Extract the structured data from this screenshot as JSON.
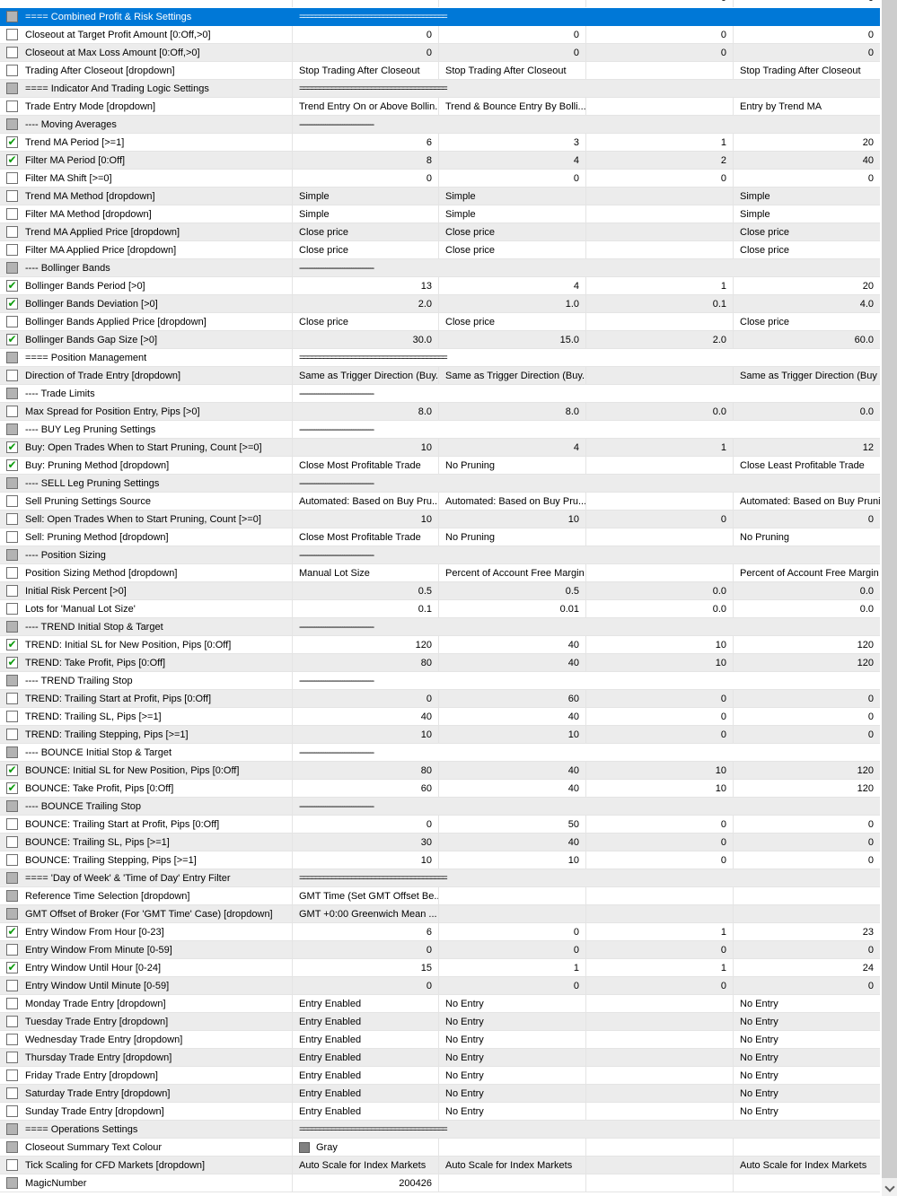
{
  "colors": {
    "accent": "#0078d7",
    "alt": "#ececec",
    "grid": "#e4e4e4",
    "cbborder": "#707070",
    "cbgray": "#b3b3b3",
    "green": "#0c9c0c",
    "swatch": "#808080",
    "sbtrack": "#f0f0f0",
    "sbthumb": "#cdcdcd",
    "chev": "#5f5f5f"
  },
  "icons": {
    "check": "✔"
  },
  "table": {
    "separators": {
      "eq": "=====================================",
      "dash": "----------------------------------------"
    },
    "partial_top": {
      "values": [
        "",
        "",
        "0",
        "0"
      ]
    },
    "rows": [
      {
        "t": "sec",
        "sep": "eq",
        "selected": true,
        "cb": "g",
        "label": "==== Combined Profit & Risk Settings"
      },
      {
        "t": "p",
        "cb": "u",
        "label": "Closeout at Target Profit Amount [0:Off,>0]",
        "cells": [
          "0",
          "0",
          "0",
          "0"
        ]
      },
      {
        "t": "p",
        "cb": "u",
        "label": "Closeout at Max Loss Amount [0:Off,>0]",
        "cells": [
          "0",
          "0",
          "0",
          "0"
        ]
      },
      {
        "t": "p",
        "cb": "u",
        "label": "Trading After Closeout [dropdown]",
        "cells": [
          "Stop Trading After Closeout",
          "Stop Trading After Closeout",
          "",
          "Stop Trading After Closeout"
        ]
      },
      {
        "t": "sec",
        "sep": "eq",
        "cb": "g",
        "label": "==== Indicator And Trading Logic Settings"
      },
      {
        "t": "p",
        "cb": "u",
        "label": "Trade Entry Mode [dropdown]",
        "cells": [
          "Trend Entry On or Above Bollin...",
          "Trend & Bounce Entry By Bolli...",
          "",
          "Entry by Trend MA"
        ]
      },
      {
        "t": "sec",
        "sep": "dash",
        "cb": "g",
        "label": "---- Moving Averages"
      },
      {
        "t": "p",
        "cb": "c",
        "label": "Trend MA Period [>=1]",
        "cells": [
          "6",
          "3",
          "1",
          "20"
        ]
      },
      {
        "t": "p",
        "cb": "c",
        "label": "Filter MA Period [0:Off]",
        "cells": [
          "8",
          "4",
          "2",
          "40"
        ]
      },
      {
        "t": "p",
        "cb": "u",
        "label": "Filter MA Shift [>=0]",
        "cells": [
          "0",
          "0",
          "0",
          "0"
        ]
      },
      {
        "t": "p",
        "cb": "u",
        "label": "Trend MA Method [dropdown]",
        "cells": [
          "Simple",
          "Simple",
          "",
          "Simple"
        ]
      },
      {
        "t": "p",
        "cb": "u",
        "label": "Filter MA Method [dropdown]",
        "cells": [
          "Simple",
          "Simple",
          "",
          "Simple"
        ]
      },
      {
        "t": "p",
        "cb": "u",
        "label": "Trend MA Applied Price [dropdown]",
        "cells": [
          "Close price",
          "Close price",
          "",
          "Close price"
        ]
      },
      {
        "t": "p",
        "cb": "u",
        "label": "Filter MA Applied Price [dropdown]",
        "cells": [
          "Close price",
          "Close price",
          "",
          "Close price"
        ]
      },
      {
        "t": "sec",
        "sep": "dash",
        "cb": "g",
        "label": "---- Bollinger Bands"
      },
      {
        "t": "p",
        "cb": "c",
        "label": "Bollinger Bands Period [>0]",
        "cells": [
          "13",
          "4",
          "1",
          "20"
        ]
      },
      {
        "t": "p",
        "cb": "c",
        "label": "Bollinger Bands Deviation [>0]",
        "cells": [
          "2.0",
          "1.0",
          "0.1",
          "4.0"
        ]
      },
      {
        "t": "p",
        "cb": "u",
        "label": "Bollinger Bands Applied Price [dropdown]",
        "cells": [
          "Close price",
          "Close price",
          "",
          "Close price"
        ]
      },
      {
        "t": "p",
        "cb": "c",
        "label": "Bollinger Bands Gap Size [>0]",
        "cells": [
          "30.0",
          "15.0",
          "2.0",
          "60.0"
        ]
      },
      {
        "t": "sec",
        "sep": "eq",
        "cb": "g",
        "label": "==== Position Management"
      },
      {
        "t": "p",
        "cb": "u",
        "label": "Direction of Trade Entry [dropdown]",
        "cells": [
          "Same as Trigger Direction (Buy...",
          "Same as Trigger Direction (Buy...",
          "",
          "Same as Trigger Direction (Buy ..."
        ]
      },
      {
        "t": "sec",
        "sep": "dash",
        "cb": "g",
        "label": "---- Trade Limits"
      },
      {
        "t": "p",
        "cb": "u",
        "label": "Max Spread for Position Entry, Pips [>0]",
        "cells": [
          "8.0",
          "8.0",
          "0.0",
          "0.0"
        ]
      },
      {
        "t": "sec",
        "sep": "dash",
        "cb": "g",
        "label": "---- BUY Leg Pruning Settings"
      },
      {
        "t": "p",
        "cb": "c",
        "label": "Buy: Open Trades When to Start Pruning, Count [>=0]",
        "cells": [
          "10",
          "4",
          "1",
          "12"
        ]
      },
      {
        "t": "p",
        "cb": "c",
        "label": "Buy: Pruning Method [dropdown]",
        "cells": [
          "Close Most Profitable Trade",
          "No Pruning",
          "",
          "Close Least Profitable Trade"
        ]
      },
      {
        "t": "sec",
        "sep": "dash",
        "cb": "g",
        "label": "---- SELL Leg Pruning Settings"
      },
      {
        "t": "p",
        "cb": "u",
        "label": "Sell Pruning Settings Source",
        "cells": [
          "Automated: Based on Buy Pru...",
          "Automated: Based on Buy Pru...",
          "",
          "Automated: Based on Buy Pruni..."
        ]
      },
      {
        "t": "p",
        "cb": "u",
        "label": "Sell: Open Trades When to Start Pruning, Count [>=0]",
        "cells": [
          "10",
          "10",
          "0",
          "0"
        ]
      },
      {
        "t": "p",
        "cb": "u",
        "label": "Sell: Pruning Method [dropdown]",
        "cells": [
          "Close Most Profitable Trade",
          "No Pruning",
          "",
          "No Pruning"
        ]
      },
      {
        "t": "sec",
        "sep": "dash",
        "cb": "g",
        "label": "---- Position Sizing"
      },
      {
        "t": "p",
        "cb": "u",
        "label": "Position Sizing Method [dropdown]",
        "cells": [
          "Manual Lot Size",
          "Percent of Account Free Margin",
          "",
          "Percent of Account Free Margin"
        ]
      },
      {
        "t": "p",
        "cb": "u",
        "label": "Initial Risk Percent [>0]",
        "cells": [
          "0.5",
          "0.5",
          "0.0",
          "0.0"
        ]
      },
      {
        "t": "p",
        "cb": "u",
        "label": "Lots for 'Manual Lot Size'",
        "cells": [
          "0.1",
          "0.01",
          "0.0",
          "0.0"
        ]
      },
      {
        "t": "sec",
        "sep": "dash",
        "cb": "g",
        "label": "---- TREND Initial Stop & Target"
      },
      {
        "t": "p",
        "cb": "c",
        "label": "TREND: Initial SL for New Position, Pips [0:Off]",
        "cells": [
          "120",
          "40",
          "10",
          "120"
        ]
      },
      {
        "t": "p",
        "cb": "c",
        "label": "TREND: Take Profit, Pips [0:Off]",
        "cells": [
          "80",
          "40",
          "10",
          "120"
        ]
      },
      {
        "t": "sec",
        "sep": "dash",
        "cb": "g",
        "label": "---- TREND Trailing Stop"
      },
      {
        "t": "p",
        "cb": "u",
        "label": "TREND: Trailing Start at Profit, Pips [0:Off]",
        "cells": [
          "0",
          "60",
          "0",
          "0"
        ]
      },
      {
        "t": "p",
        "cb": "u",
        "label": "TREND: Trailing SL, Pips [>=1]",
        "cells": [
          "40",
          "40",
          "0",
          "0"
        ]
      },
      {
        "t": "p",
        "cb": "u",
        "label": "TREND: Trailing Stepping, Pips [>=1]",
        "cells": [
          "10",
          "10",
          "0",
          "0"
        ]
      },
      {
        "t": "sec",
        "sep": "dash",
        "cb": "g",
        "label": "---- BOUNCE Initial Stop & Target"
      },
      {
        "t": "p",
        "cb": "c",
        "label": "BOUNCE: Initial SL for New Position, Pips [0:Off]",
        "cells": [
          "80",
          "40",
          "10",
          "120"
        ]
      },
      {
        "t": "p",
        "cb": "c",
        "label": "BOUNCE: Take Profit, Pips [0:Off]",
        "cells": [
          "60",
          "40",
          "10",
          "120"
        ]
      },
      {
        "t": "sec",
        "sep": "dash",
        "cb": "g",
        "label": "---- BOUNCE Trailing Stop"
      },
      {
        "t": "p",
        "cb": "u",
        "label": "BOUNCE: Trailing Start at Profit, Pips [0:Off]",
        "cells": [
          "0",
          "50",
          "0",
          "0"
        ]
      },
      {
        "t": "p",
        "cb": "u",
        "label": "BOUNCE: Trailing SL, Pips [>=1]",
        "cells": [
          "30",
          "40",
          "0",
          "0"
        ]
      },
      {
        "t": "p",
        "cb": "u",
        "label": "BOUNCE: Trailing Stepping, Pips [>=1]",
        "cells": [
          "10",
          "10",
          "0",
          "0"
        ]
      },
      {
        "t": "sec",
        "sep": "eq",
        "cb": "g",
        "label": "==== 'Day of Week' & 'Time of Day' Entry Filter"
      },
      {
        "t": "p",
        "cb": "g",
        "label": "Reference Time Selection [dropdown]",
        "cells": [
          "GMT Time (Set GMT Offset Be...",
          "",
          "",
          ""
        ]
      },
      {
        "t": "p",
        "cb": "g",
        "label": "GMT Offset of Broker (For 'GMT Time' Case) [dropdown]",
        "cells": [
          "GMT +0:00 Greenwich Mean ...",
          "",
          "",
          ""
        ]
      },
      {
        "t": "p",
        "cb": "c",
        "label": "Entry Window From Hour [0-23]",
        "cells": [
          "6",
          "0",
          "1",
          "23"
        ]
      },
      {
        "t": "p",
        "cb": "u",
        "label": "Entry Window From Minute [0-59]",
        "cells": [
          "0",
          "0",
          "0",
          "0"
        ]
      },
      {
        "t": "p",
        "cb": "c",
        "label": "Entry Window Until Hour [0-24]",
        "cells": [
          "15",
          "1",
          "1",
          "24"
        ]
      },
      {
        "t": "p",
        "cb": "u",
        "label": "Entry Window Until Minute [0-59]",
        "cells": [
          "0",
          "0",
          "0",
          "0"
        ]
      },
      {
        "t": "p",
        "cb": "u",
        "label": "Monday Trade Entry [dropdown]",
        "cells": [
          "Entry Enabled",
          "No Entry",
          "",
          "No Entry"
        ]
      },
      {
        "t": "p",
        "cb": "u",
        "label": "Tuesday Trade Entry [dropdown]",
        "cells": [
          "Entry Enabled",
          "No Entry",
          "",
          "No Entry"
        ]
      },
      {
        "t": "p",
        "cb": "u",
        "label": "Wednesday Trade Entry [dropdown]",
        "cells": [
          "Entry Enabled",
          "No Entry",
          "",
          "No Entry"
        ]
      },
      {
        "t": "p",
        "cb": "u",
        "label": "Thursday Trade Entry [dropdown]",
        "cells": [
          "Entry Enabled",
          "No Entry",
          "",
          "No Entry"
        ]
      },
      {
        "t": "p",
        "cb": "u",
        "label": "Friday Trade Entry [dropdown]",
        "cells": [
          "Entry Enabled",
          "No Entry",
          "",
          "No Entry"
        ]
      },
      {
        "t": "p",
        "cb": "u",
        "label": "Saturday Trade Entry [dropdown]",
        "cells": [
          "Entry Enabled",
          "No Entry",
          "",
          "No Entry"
        ]
      },
      {
        "t": "p",
        "cb": "u",
        "label": "Sunday Trade Entry [dropdown]",
        "cells": [
          "Entry Enabled",
          "No Entry",
          "",
          "No Entry"
        ]
      },
      {
        "t": "sec",
        "sep": "eq",
        "cb": "g",
        "label": "==== Operations Settings"
      },
      {
        "t": "p",
        "cb": "g",
        "swatch": true,
        "label": "Closeout Summary Text Colour",
        "cells": [
          "Gray",
          "",
          "",
          ""
        ]
      },
      {
        "t": "p",
        "cb": "u",
        "label": "Tick Scaling for CFD Markets [dropdown]",
        "cells": [
          "Auto Scale for Index Markets",
          "Auto Scale for Index Markets",
          "",
          "Auto Scale for Index Markets"
        ]
      },
      {
        "t": "p",
        "cb": "g",
        "label": "MagicNumber",
        "cells": [
          "200426",
          "",
          "",
          ""
        ]
      }
    ]
  }
}
